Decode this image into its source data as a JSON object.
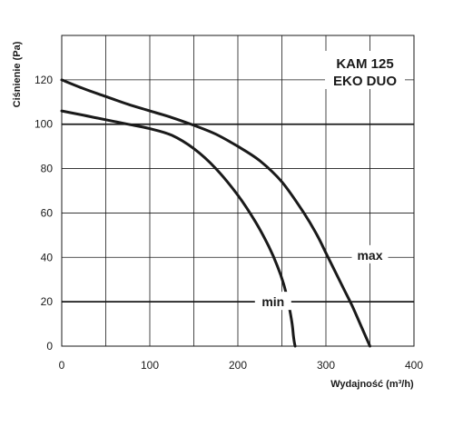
{
  "chart_data": {
    "type": "line",
    "title_lines": [
      "KAM 125",
      "EKO DUO"
    ],
    "xlabel": "Wydajność (m³/h)",
    "ylabel": "Ciśnienie (Pa)",
    "xlim": [
      0,
      400
    ],
    "ylim": [
      0,
      140
    ],
    "x_ticks": [
      0,
      100,
      200,
      300,
      400
    ],
    "y_ticks": [
      0,
      20,
      40,
      60,
      80,
      100,
      120
    ],
    "grid": true,
    "colors": {
      "line": "#1a1a1a",
      "grid": "#1a1a1a",
      "background": "#ffffff"
    },
    "series": [
      {
        "name": "max",
        "x": [
          0,
          25,
          50,
          75,
          100,
          125,
          150,
          175,
          200,
          225,
          250,
          275,
          290,
          300,
          310,
          320,
          330,
          340,
          350
        ],
        "y": [
          120,
          116,
          112.5,
          109,
          106,
          103,
          99.5,
          95.5,
          90,
          83.5,
          74,
          60,
          50,
          42,
          34,
          26,
          18,
          9,
          0
        ]
      },
      {
        "name": "min",
        "x": [
          0,
          25,
          50,
          75,
          100,
          125,
          150,
          175,
          200,
          220,
          235,
          245,
          252,
          257,
          260,
          262,
          263,
          264,
          265
        ],
        "y": [
          106,
          104,
          102,
          100,
          98,
          95,
          89,
          80,
          68,
          56,
          45,
          36,
          28,
          20,
          14,
          9,
          5,
          2,
          0
        ]
      }
    ],
    "series_labels": [
      {
        "series": "max",
        "text": "max",
        "x": 350,
        "y": 41
      },
      {
        "series": "min",
        "text": "min",
        "x": 240,
        "y": 20
      }
    ]
  }
}
